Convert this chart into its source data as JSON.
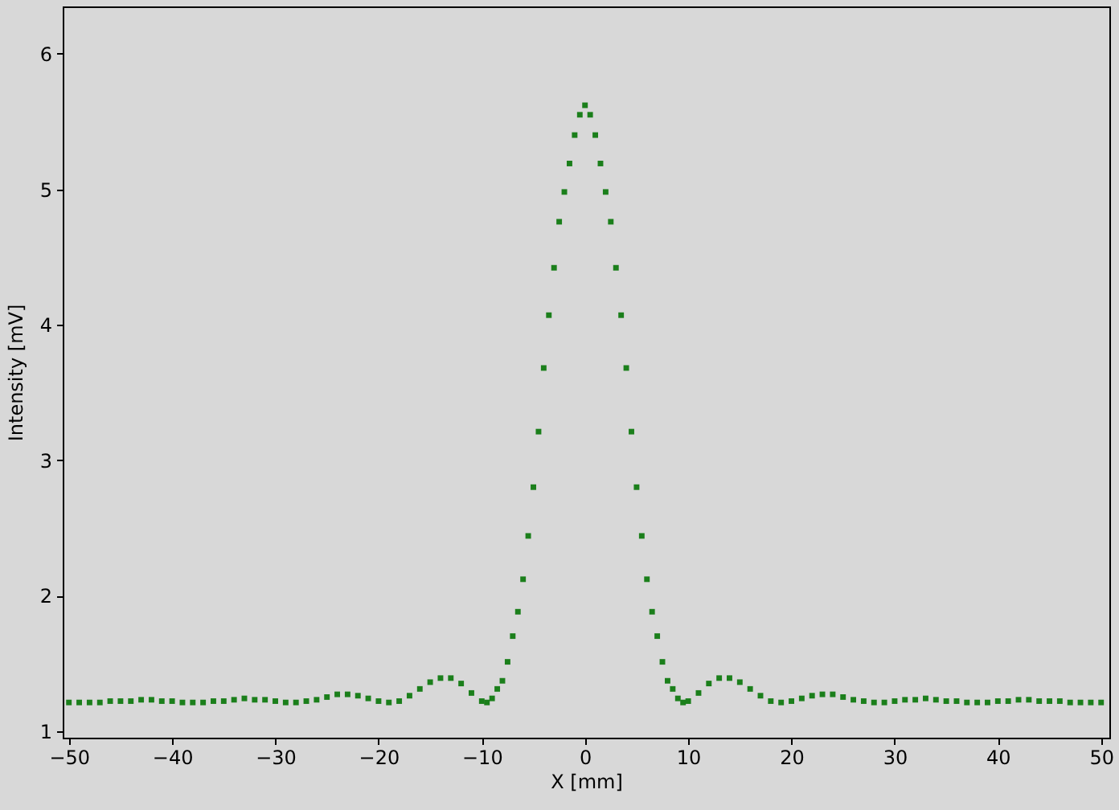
{
  "chart_data": {
    "type": "scatter",
    "xlabel": "X [mm]",
    "ylabel": "Intensity [mV]",
    "marker": "square",
    "color": "#1b7f1b",
    "xlim": [
      -50.6,
      50.8
    ],
    "ylim": [
      0.95,
      6.35
    ],
    "xticks": [
      -50,
      -40,
      -30,
      -20,
      -10,
      0,
      10,
      20,
      30,
      40,
      50
    ],
    "yticks": [
      1,
      2,
      3,
      4,
      5,
      6
    ],
    "x": [
      -50,
      -49,
      -48,
      -47,
      -46,
      -45,
      -44,
      -43,
      -42,
      -41,
      -40,
      -39,
      -38,
      -37,
      -36,
      -35,
      -34,
      -33,
      -32,
      -31,
      -30,
      -29,
      -28,
      -27,
      -26,
      -25,
      -24,
      -23,
      -22,
      -21,
      -20,
      -19,
      -18,
      -17,
      -16,
      -15,
      -14,
      -13,
      -12,
      -11,
      -10,
      -9.5,
      -9,
      -8.5,
      -8,
      -7.5,
      -7,
      -6.5,
      -6,
      -5.5,
      -5,
      -4.5,
      -4,
      -3.5,
      -3,
      -2.5,
      -2,
      -1.5,
      -1,
      -0.5,
      0,
      0.5,
      1,
      1.5,
      2,
      2.5,
      3,
      3.5,
      4,
      4.5,
      5,
      5.5,
      6,
      6.5,
      7,
      7.5,
      8,
      8.5,
      9,
      9.5,
      10,
      11,
      12,
      13,
      14,
      15,
      16,
      17,
      18,
      19,
      20,
      21,
      22,
      23,
      24,
      25,
      26,
      27,
      28,
      29,
      30,
      31,
      32,
      33,
      34,
      35,
      36,
      37,
      38,
      39,
      40,
      41,
      42,
      43,
      44,
      45,
      46,
      47,
      48,
      49,
      50
    ],
    "values": [
      1.21,
      1.21,
      1.21,
      1.21,
      1.22,
      1.22,
      1.22,
      1.23,
      1.23,
      1.22,
      1.22,
      1.21,
      1.21,
      1.21,
      1.22,
      1.22,
      1.23,
      1.24,
      1.23,
      1.23,
      1.22,
      1.21,
      1.21,
      1.22,
      1.23,
      1.25,
      1.27,
      1.27,
      1.26,
      1.24,
      1.22,
      1.21,
      1.22,
      1.26,
      1.31,
      1.36,
      1.39,
      1.39,
      1.35,
      1.28,
      1.22,
      1.21,
      1.24,
      1.31,
      1.37,
      1.51,
      1.7,
      1.88,
      2.12,
      2.44,
      2.8,
      3.21,
      3.68,
      4.07,
      4.42,
      4.76,
      4.98,
      5.19,
      5.4,
      5.55,
      5.62,
      5.55,
      5.4,
      5.19,
      4.98,
      4.76,
      4.42,
      4.07,
      3.68,
      3.21,
      2.8,
      2.44,
      2.12,
      1.88,
      1.7,
      1.51,
      1.37,
      1.31,
      1.24,
      1.21,
      1.22,
      1.28,
      1.35,
      1.39,
      1.39,
      1.36,
      1.31,
      1.26,
      1.22,
      1.21,
      1.22,
      1.24,
      1.26,
      1.27,
      1.27,
      1.25,
      1.23,
      1.22,
      1.21,
      1.21,
      1.22,
      1.23,
      1.23,
      1.24,
      1.23,
      1.22,
      1.22,
      1.21,
      1.21,
      1.21,
      1.22,
      1.22,
      1.23,
      1.23,
      1.22,
      1.22,
      1.22,
      1.21,
      1.21,
      1.21,
      1.21
    ]
  }
}
